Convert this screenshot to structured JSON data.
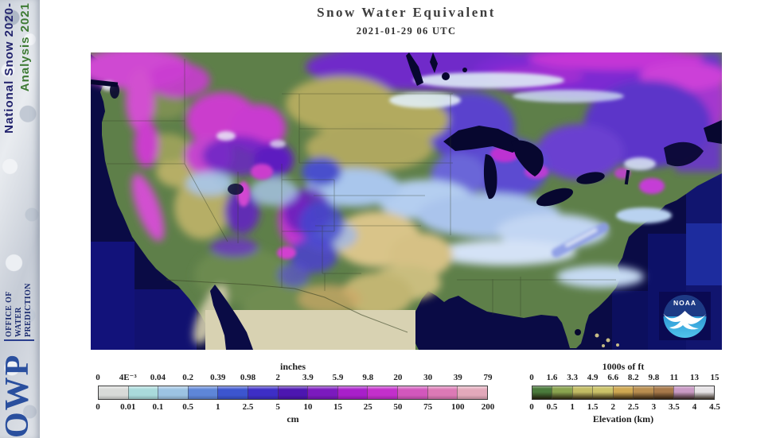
{
  "header": {
    "title": "Snow Water Equivalent",
    "subtitle": "2021-01-29 06 UTC"
  },
  "sidebar": {
    "title_line1": "National Snow 2020-",
    "title_line2": "Analysis 2021",
    "org_abbrev": "OWP",
    "org_line1": "OFFICE OF",
    "org_line2": "WATER",
    "org_line3": "PREDICTION",
    "colors": {
      "title_line1": "#23246e",
      "title_line2": "#3d7a33",
      "owp": "#2a4f9e",
      "org": "#1a2a6e"
    }
  },
  "map": {
    "noaa_logo_label": "NOAA",
    "palette": {
      "ocean": "#0a0b45",
      "ocean_step": "#11156f",
      "lakes": "#07072f",
      "land_no_snow_green": "#5e7f49",
      "bare_khaki": "#b2aa5f",
      "masked_mexico_beige": "#d8d2b2",
      "heavy_swe_magenta": "#cb3ecd",
      "deep_swe_purple": "#6a24c4",
      "moderate_swe_blue": "#4448d0",
      "light_swe_blue": "#a9c6ec"
    }
  },
  "legend_swe": {
    "unit_top": "inches",
    "unit_bottom": "cm",
    "ticks_top": [
      "0",
      "4E⁻³",
      "0.04",
      "0.2",
      "0.39",
      "0.98",
      "2",
      "3.9",
      "5.9",
      "9.8",
      "20",
      "30",
      "39",
      "79"
    ],
    "ticks_bottom": [
      "0",
      "0.01",
      "0.1",
      "0.5",
      "1",
      "2.5",
      "5",
      "10",
      "15",
      "25",
      "50",
      "75",
      "100",
      "200"
    ],
    "segment_colors": [
      "#d8dad8",
      "#a9dadb",
      "#9cc3e2",
      "#5e86d8",
      "#3c55cf",
      "#3d2ec6",
      "#4c16b1",
      "#7b1abe",
      "#a81fca",
      "#c32fcb",
      "#d257bc",
      "#dc79b5",
      "#e2a8ba"
    ]
  },
  "legend_elev": {
    "unit_top": "1000s of ft",
    "label_bottom": "Elevation (km)",
    "ticks_top": [
      "0",
      "1.6",
      "3.3",
      "4.9",
      "6.6",
      "8.2",
      "9.8",
      "11",
      "13",
      "15"
    ],
    "ticks_bottom": [
      "0",
      "0.5",
      "1",
      "1.5",
      "2",
      "2.5",
      "3",
      "3.5",
      "4",
      "4.5"
    ],
    "segment_colors": [
      "#4a7a3c",
      "#8aa450",
      "#c2bc64",
      "#cbc369",
      "#cfa852",
      "#b98e50",
      "#a7794a",
      "#c99ac5",
      "#e6e3e6"
    ]
  }
}
